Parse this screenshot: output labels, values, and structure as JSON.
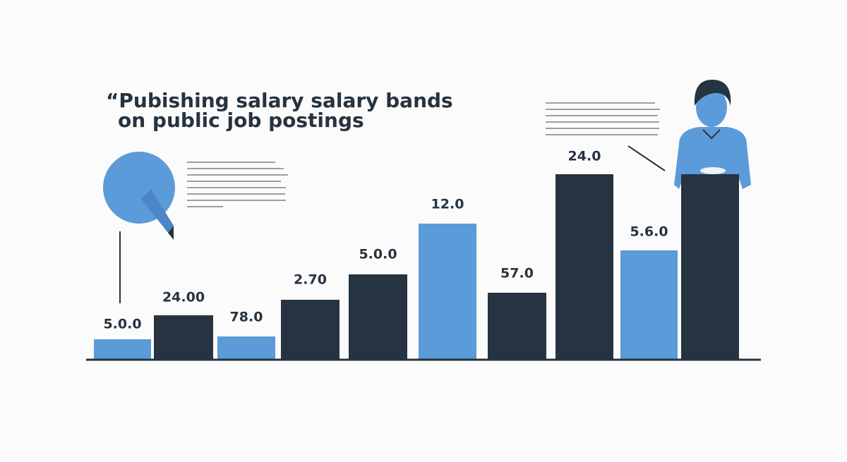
{
  "header": {
    "title_lines": [
      "“Pubishing salary salary bands",
      "on public job postings"
    ]
  },
  "bars": {
    "labels": [
      "5.0.0",
      "24.00",
      "78.0",
      "2.70",
      "5.0.0",
      "12.0",
      "57.0",
      "24.0",
      "5.6.0"
    ]
  }
}
